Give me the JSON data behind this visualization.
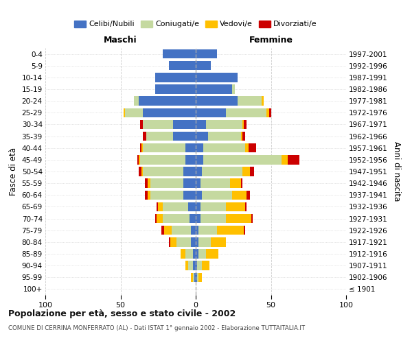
{
  "age_groups": [
    "100+",
    "95-99",
    "90-94",
    "85-89",
    "80-84",
    "75-79",
    "70-74",
    "65-69",
    "60-64",
    "55-59",
    "50-54",
    "45-49",
    "40-44",
    "35-39",
    "30-34",
    "25-29",
    "20-24",
    "15-19",
    "10-14",
    "5-9",
    "0-4"
  ],
  "birth_years": [
    "≤ 1901",
    "1902-1906",
    "1907-1911",
    "1912-1916",
    "1917-1921",
    "1922-1926",
    "1927-1931",
    "1932-1936",
    "1937-1941",
    "1942-1946",
    "1947-1951",
    "1952-1956",
    "1957-1961",
    "1962-1966",
    "1967-1971",
    "1972-1976",
    "1977-1981",
    "1982-1986",
    "1987-1991",
    "1992-1996",
    "1997-2001"
  ],
  "male_celibi": [
    0,
    1,
    2,
    2,
    3,
    3,
    4,
    5,
    8,
    8,
    8,
    7,
    7,
    15,
    15,
    35,
    38,
    27,
    27,
    18,
    22
  ],
  "male_coniugati": [
    0,
    1,
    3,
    5,
    10,
    13,
    18,
    17,
    22,
    22,
    27,
    30,
    28,
    18,
    20,
    12,
    3,
    0,
    0,
    0,
    0
  ],
  "male_vedovi": [
    0,
    1,
    2,
    3,
    4,
    5,
    4,
    3,
    2,
    2,
    1,
    1,
    1,
    0,
    0,
    1,
    0,
    0,
    0,
    0,
    0
  ],
  "male_divorziati": [
    0,
    0,
    0,
    0,
    1,
    2,
    1,
    1,
    2,
    2,
    2,
    1,
    1,
    2,
    2,
    0,
    0,
    0,
    0,
    0,
    0
  ],
  "fem_nubili": [
    0,
    1,
    1,
    2,
    2,
    2,
    3,
    3,
    4,
    3,
    4,
    5,
    5,
    8,
    7,
    20,
    28,
    24,
    28,
    10,
    14
  ],
  "fem_coniugate": [
    0,
    1,
    3,
    5,
    8,
    12,
    17,
    17,
    20,
    20,
    27,
    52,
    28,
    22,
    24,
    27,
    16,
    2,
    0,
    0,
    0
  ],
  "fem_vedove": [
    0,
    2,
    5,
    8,
    10,
    18,
    17,
    13,
    10,
    7,
    5,
    4,
    2,
    1,
    1,
    2,
    1,
    0,
    0,
    0,
    0
  ],
  "fem_divorziate": [
    0,
    0,
    0,
    0,
    0,
    1,
    1,
    1,
    2,
    1,
    3,
    8,
    5,
    2,
    2,
    1,
    0,
    0,
    0,
    0,
    0
  ],
  "color_celibi": "#4472c4",
  "color_coniugati": "#c5d9a0",
  "color_vedovi": "#ffc000",
  "color_divorziati": "#cc0000",
  "title1": "Popolazione per età, sesso e stato civile - 2002",
  "title2": "COMUNE DI CERRINA MONFERRATO (AL) - Dati ISTAT 1° gennaio 2002 - Elaborazione TUTTAITALIA.IT",
  "label_maschi": "Maschi",
  "label_femmine": "Femmine",
  "label_fasce": "Fasce di età",
  "label_anni": "Anni di nascita",
  "legend_labels": [
    "Celibi/Nubili",
    "Coniugati/e",
    "Vedovi/e",
    "Divorziati/e"
  ],
  "xlim": 100,
  "bg_fig": "#ffffff",
  "bg_axes": "#ffffff",
  "grid_color": "#cccccc",
  "xticks": [
    -100,
    -50,
    0,
    50,
    100
  ]
}
